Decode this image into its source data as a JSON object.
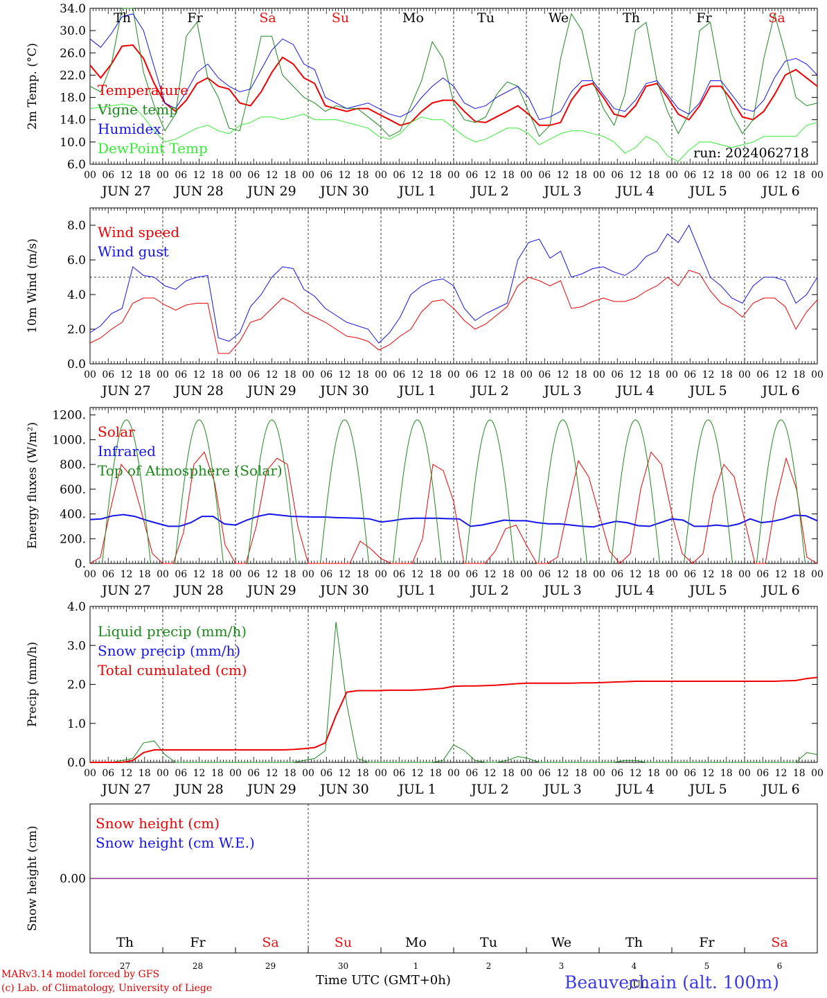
{
  "meta": {
    "run_label": "run: 2024062718"
  },
  "colors": {
    "red": "#f00000",
    "darkgreen": "#1a8a1a",
    "blue": "#1414f0",
    "lightgreen": "#33ee33",
    "purple": "#8a2a8a"
  },
  "days": {
    "weekday": [
      "Th",
      "Fr",
      "Sa",
      "Su",
      "Mo",
      "Tu",
      "We",
      "Th",
      "Fr",
      "Sa"
    ],
    "weekend_flags": [
      false,
      false,
      true,
      true,
      false,
      false,
      false,
      false,
      false,
      true
    ],
    "date_labels": [
      "JUN 27",
      "JUN 28",
      "JUN 29",
      "JUN 30",
      "JUL  1",
      "JUL  2",
      "JUL  3",
      "JUL  4",
      "JUL  5",
      "JUL  6"
    ],
    "day_numbers": [
      "27",
      "28",
      "29",
      "30",
      "1",
      "2",
      "3",
      "4",
      "5",
      "6"
    ],
    "hour_ticks": [
      "00",
      "06",
      "12",
      "18"
    ],
    "final_tick": "00"
  },
  "chart_data": [
    {
      "type": "line",
      "ylabel": "2m Temp. (°C)",
      "ylim": [
        6.0,
        34.0
      ],
      "yticks": [
        "6.0",
        "10.0",
        "14.0",
        "18.0",
        "22.0",
        "26.0",
        "30.0",
        "34.0"
      ],
      "x_unit": "hours since JUN 27 00 UTC (3-hourly, 0..240)",
      "series": [
        {
          "name": "Temperature",
          "color": "red",
          "values": [
            23.8,
            21.5,
            24.0,
            27.2,
            27.4,
            25.0,
            20.5,
            17.0,
            15.5,
            17.5,
            20.5,
            21.5,
            20.0,
            19.5,
            17.0,
            16.5,
            19.0,
            22.5,
            25.2,
            24.0,
            21.5,
            20.5,
            16.5,
            16.0,
            15.5,
            16.0,
            16.0,
            15.0,
            14.0,
            13.0,
            13.5,
            15.5,
            17.0,
            17.5,
            17.5,
            15.5,
            13.7,
            13.5,
            14.5,
            15.5,
            16.5,
            15.0,
            13.0,
            13.0,
            13.5,
            17.5,
            20.0,
            20.5,
            18.0,
            15.0,
            14.5,
            16.5,
            20.0,
            20.5,
            18.0,
            15.0,
            14.0,
            16.5,
            20.0,
            20.0,
            17.5,
            14.5,
            14.0,
            15.5,
            18.5,
            22.0,
            23.0,
            21.5,
            20.0
          ]
        },
        {
          "name": "Vigne temp",
          "color": "darkgreen",
          "values": [
            20.0,
            19.0,
            24.0,
            34.0,
            34.0,
            22.5,
            16.5,
            12.0,
            15.0,
            29.0,
            31.5,
            21.5,
            18.0,
            12.5,
            12.0,
            20.0,
            29.0,
            29.0,
            22.0,
            20.0,
            18.0,
            17.0,
            15.5,
            16.5,
            16.0,
            16.0,
            14.5,
            13.0,
            11.0,
            12.0,
            16.5,
            21.0,
            28.0,
            25.0,
            17.0,
            14.0,
            13.5,
            14.5,
            18.5,
            20.8,
            20.0,
            15.5,
            11.0,
            13.0,
            25.0,
            33.0,
            30.0,
            21.0,
            16.0,
            13.0,
            18.5,
            30.0,
            31.5,
            21.0,
            15.5,
            11.5,
            15.0,
            30.0,
            31.5,
            21.0,
            15.0,
            11.5,
            14.0,
            25.0,
            33.0,
            26.0,
            18.0,
            16.5,
            17.0
          ]
        },
        {
          "name": "Humidex",
          "color": "blue",
          "values": [
            28.5,
            27.0,
            29.5,
            32.5,
            33.0,
            30.0,
            23.5,
            17.0,
            16.0,
            19.0,
            22.5,
            24.0,
            21.5,
            20.0,
            19.0,
            19.5,
            23.0,
            26.5,
            28.5,
            27.5,
            24.0,
            23.0,
            18.0,
            17.0,
            16.0,
            16.5,
            17.0,
            16.0,
            15.0,
            14.5,
            15.5,
            18.0,
            20.0,
            21.5,
            20.0,
            17.0,
            16.0,
            16.5,
            18.0,
            19.0,
            20.0,
            18.0,
            14.0,
            14.5,
            15.5,
            19.0,
            21.0,
            21.0,
            18.5,
            16.0,
            15.5,
            17.5,
            20.5,
            21.0,
            18.5,
            16.0,
            15.0,
            17.0,
            21.0,
            21.0,
            18.5,
            16.0,
            15.5,
            17.5,
            21.5,
            24.5,
            25.0,
            24.0,
            22.0
          ]
        },
        {
          "name": "DewPoint Temp",
          "color": "lightgreen",
          "values": [
            16.0,
            16.2,
            16.5,
            16.8,
            16.5,
            14.5,
            12.0,
            10.0,
            10.5,
            11.5,
            12.5,
            13.0,
            12.0,
            11.5,
            13.0,
            13.5,
            14.5,
            14.5,
            14.0,
            14.5,
            15.0,
            14.0,
            14.0,
            14.0,
            13.5,
            13.0,
            12.5,
            11.0,
            10.5,
            11.5,
            13.5,
            14.5,
            14.0,
            14.0,
            12.5,
            11.0,
            10.0,
            10.5,
            11.5,
            12.5,
            12.5,
            11.5,
            9.5,
            10.5,
            11.5,
            12.0,
            12.0,
            11.5,
            11.0,
            10.0,
            8.0,
            9.0,
            11.0,
            10.0,
            7.5,
            6.5,
            8.5,
            10.0,
            10.0,
            9.5,
            9.0,
            9.5,
            10.0,
            11.0,
            11.0,
            11.0,
            11.0,
            13.0,
            13.5
          ]
        }
      ]
    },
    {
      "type": "line",
      "ylabel": "10m Wind (m/s)",
      "ylim": [
        0.0,
        9.0
      ],
      "yticks": [
        "0.0",
        "2.0",
        "4.0",
        "6.0",
        "8.0"
      ],
      "reference_line": 5.0,
      "series": [
        {
          "name": "Wind speed",
          "color": "red",
          "values": [
            1.2,
            1.5,
            2.0,
            2.4,
            3.5,
            3.8,
            3.8,
            3.4,
            3.1,
            3.4,
            3.5,
            3.5,
            0.6,
            0.6,
            1.3,
            2.4,
            2.6,
            3.2,
            3.8,
            3.5,
            3.0,
            2.7,
            2.4,
            2.0,
            1.6,
            1.5,
            1.3,
            0.8,
            1.1,
            1.6,
            2.0,
            3.0,
            3.6,
            3.7,
            3.2,
            2.5,
            2.0,
            2.3,
            2.8,
            3.3,
            4.5,
            5.0,
            4.8,
            4.5,
            4.8,
            3.2,
            3.3,
            3.6,
            3.8,
            3.6,
            3.6,
            3.8,
            4.2,
            4.5,
            5.0,
            4.5,
            5.4,
            5.2,
            4.2,
            3.5,
            3.2,
            2.7,
            3.5,
            3.8,
            3.8,
            3.3,
            2.0,
            3.0,
            3.7
          ]
        },
        {
          "name": "Wind gust",
          "color": "blue",
          "values": [
            1.8,
            2.2,
            2.9,
            3.2,
            5.6,
            5.1,
            5.0,
            4.5,
            4.3,
            4.8,
            5.0,
            5.1,
            1.5,
            1.3,
            1.8,
            3.3,
            4.0,
            5.0,
            5.6,
            5.5,
            4.3,
            3.9,
            3.2,
            2.8,
            2.4,
            2.2,
            2.0,
            1.2,
            1.8,
            2.7,
            4.0,
            4.5,
            4.8,
            4.9,
            4.5,
            3.2,
            2.5,
            2.9,
            3.2,
            3.5,
            6.0,
            7.0,
            7.2,
            6.1,
            6.5,
            5.0,
            5.2,
            5.5,
            5.6,
            5.3,
            5.1,
            5.5,
            6.2,
            6.5,
            7.5,
            7.0,
            8.0,
            6.5,
            5.0,
            4.5,
            3.8,
            3.5,
            4.5,
            5.0,
            5.0,
            4.8,
            3.5,
            4.0,
            5.0
          ]
        }
      ]
    },
    {
      "type": "line",
      "ylabel": "Energy fluxes (W/m²)",
      "ylim": [
        0,
        1260
      ],
      "yticks": [
        "0.",
        "200.",
        "400.",
        "600.",
        "800.",
        "1000.",
        "1200."
      ],
      "series": [
        {
          "name": "Solar",
          "color": "red",
          "values": [
            0,
            50,
            450,
            800,
            700,
            400,
            80,
            0,
            0,
            250,
            800,
            900,
            650,
            150,
            0,
            0,
            300,
            750,
            850,
            800,
            300,
            0,
            0,
            0,
            0,
            0,
            180,
            120,
            40,
            0,
            0,
            0,
            200,
            800,
            750,
            500,
            0,
            0,
            0,
            100,
            280,
            310,
            150,
            0,
            0,
            50,
            450,
            830,
            700,
            400,
            100,
            0,
            80,
            600,
            900,
            800,
            400,
            80,
            0,
            80,
            550,
            800,
            700,
            350,
            0,
            0,
            500,
            850,
            600,
            50,
            0
          ],
          "note_values": "x sampled at 3.5h steps"
        },
        {
          "name": "Infrared",
          "color": "blue",
          "values": [
            355,
            360,
            385,
            395,
            380,
            350,
            325,
            300,
            300,
            330,
            380,
            380,
            320,
            310,
            350,
            380,
            400,
            390,
            380,
            378,
            375,
            375,
            370,
            368,
            365,
            360,
            335,
            345,
            360,
            365,
            365,
            365,
            362,
            360,
            300,
            310,
            330,
            350,
            345,
            345,
            330,
            320,
            320,
            310,
            300,
            295,
            320,
            340,
            330,
            305,
            300,
            330,
            360,
            350,
            300,
            300,
            310,
            300,
            320,
            360,
            330,
            340,
            360,
            390,
            385,
            345
          ]
        },
        {
          "name": "Top of Atmosphere (Solar)",
          "color": "darkgreen",
          "peak": 1160
        }
      ]
    },
    {
      "type": "line",
      "ylabel": "Precip (mm/h)",
      "ylim": [
        0.0,
        4.0
      ],
      "yticks": [
        "0.0",
        "1.0",
        "2.0",
        "3.0",
        "4.0"
      ],
      "series": [
        {
          "name": "Liquid precip (mm/h)",
          "color": "darkgreen",
          "values": [
            0,
            0,
            0,
            0.05,
            0.1,
            0.5,
            0.55,
            0.2,
            0,
            0,
            0,
            0,
            0,
            0,
            0,
            0,
            0,
            0,
            0,
            0,
            0.05,
            0.1,
            0.3,
            3.6,
            1.5,
            0.1,
            0,
            0,
            0,
            0,
            0,
            0,
            0,
            0.05,
            0.45,
            0.3,
            0.05,
            0,
            0,
            0.05,
            0.15,
            0.1,
            0,
            0,
            0,
            0,
            0,
            0,
            0,
            0,
            0.05,
            0.05,
            0,
            0,
            0,
            0,
            0,
            0,
            0,
            0,
            0,
            0,
            0,
            0,
            0,
            0,
            0,
            0.25,
            0.2
          ]
        },
        {
          "name": "Snow precip (mm/h)",
          "color": "blue",
          "values": []
        },
        {
          "name": "Total cumulated (cm)",
          "color": "red",
          "values": [
            0,
            0,
            0,
            0,
            0.05,
            0.25,
            0.32,
            0.32,
            0.32,
            0.32,
            0.32,
            0.32,
            0.32,
            0.32,
            0.32,
            0.32,
            0.32,
            0.32,
            0.32,
            0.33,
            0.35,
            0.38,
            0.5,
            1.2,
            1.8,
            1.84,
            1.84,
            1.84,
            1.85,
            1.85,
            1.85,
            1.86,
            1.88,
            1.9,
            1.95,
            1.96,
            1.96,
            1.97,
            1.98,
            2.0,
            2.02,
            2.03,
            2.03,
            2.03,
            2.03,
            2.03,
            2.04,
            2.04,
            2.05,
            2.06,
            2.07,
            2.08,
            2.08,
            2.08,
            2.08,
            2.08,
            2.08,
            2.08,
            2.08,
            2.08,
            2.08,
            2.08,
            2.08,
            2.08,
            2.08,
            2.09,
            2.1,
            2.15,
            2.18
          ]
        }
      ]
    },
    {
      "type": "line",
      "ylabel": "Snow height (cm)",
      "yticks": [
        "0.00"
      ],
      "series": [
        {
          "name": "Snow height (cm)",
          "color": "red",
          "values": [
            0
          ]
        },
        {
          "name": "Snow height (cm W.E.)",
          "color": "blue",
          "values": [
            0
          ]
        }
      ],
      "xlabel": "Time UTC (GMT+0h)"
    }
  ],
  "footer": {
    "credit_line1": "MARv3.14 model forced by GFS",
    "credit_line2": "(c) Lab. of Climatology, University of Liege",
    "station": "Beauvechain (alt. 100m)",
    "month_overlay": "JUL",
    "xlabel": "Time UTC (GMT+0h)"
  }
}
